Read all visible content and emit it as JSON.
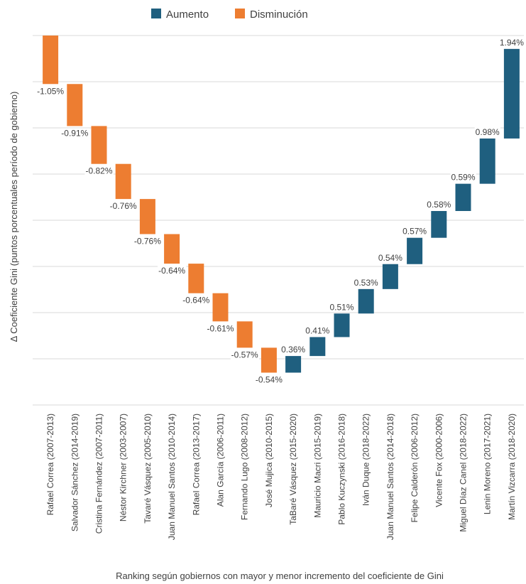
{
  "chart_data": {
    "type": "bar",
    "subtype": "waterfall",
    "ylabel": "Δ Coeficiente Gini (puntos porcentuales período de gobierno)",
    "xlabel": "Ranking según gobiernos con mayor y menor incremento del coeficiente de Gini",
    "legend": {
      "placement": "top",
      "entries": [
        {
          "name": "Aumento",
          "color": "#1f5f7f"
        },
        {
          "name": "Disminución",
          "color": "#ed7d31"
        }
      ]
    },
    "gridlines": true,
    "categories": [
      "Rafael Correa (2007-2013)",
      "Salvador Sánchez (2014-2019)",
      "Cristina Fernández (2007-2011)",
      "Néstor Kirchner (2003-2007)",
      "Tavaré Vásquez (2005-2010)",
      "Juan Manuel Santos (2010-2014)",
      "Rafael Correa (2013-2017)",
      "Alan García (2006-2011)",
      "Fernando Lugo (2008-2012)",
      "José Mujica (2010-2015)",
      "TaBaré Vásquez (2015-2020)",
      "Mauricio Macri (2015-2019)",
      "Pablo Kuczynski (2016-2018)",
      "Iván Duque (2018-2022)",
      "Juan Manuel Santos (2014-2018)",
      "Felipe Calderón (2006-2012)",
      "Vicente Fox (2000-2006)",
      "Miguel Díaz Canel (2018-2022)",
      "Lenin Moreno (2017-2021)",
      "Martín Vizcarra (2018-2020)"
    ],
    "values": [
      -1.05,
      -0.91,
      -0.82,
      -0.76,
      -0.76,
      -0.64,
      -0.64,
      -0.61,
      -0.57,
      -0.54,
      0.36,
      0.41,
      0.51,
      0.53,
      0.54,
      0.57,
      0.58,
      0.59,
      0.98,
      1.94
    ],
    "data_labels": [
      "-1.05%",
      "-0.91%",
      "-0.82%",
      "-0.76%",
      "-0.76%",
      "-0.64%",
      "-0.64%",
      "-0.61%",
      "-0.57%",
      "-0.54%",
      "0.36%",
      "0.41%",
      "0.51%",
      "0.53%",
      "0.54%",
      "0.57%",
      "0.58%",
      "0.59%",
      "0.98%",
      "1.94%"
    ],
    "colors": {
      "increase": "#1f5f7f",
      "decrease": "#ed7d31"
    }
  }
}
